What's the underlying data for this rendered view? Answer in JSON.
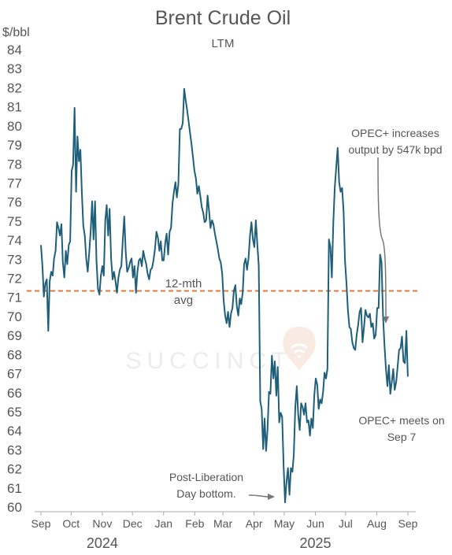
{
  "chart_data": {
    "type": "line",
    "title": "Brent Crude Oil",
    "subtitle": "LTM",
    "ylabel": "$/bbl",
    "xlabel": "",
    "ylim": [
      60,
      84
    ],
    "yticks": [
      60,
      61,
      62,
      63,
      64,
      65,
      66,
      67,
      68,
      69,
      70,
      71,
      72,
      73,
      74,
      75,
      76,
      77,
      78,
      79,
      80,
      81,
      82,
      83,
      84
    ],
    "xlim": [
      0,
      365
    ],
    "x_ticks": [
      {
        "x": 0,
        "label": "Sep"
      },
      {
        "x": 30,
        "label": "Oct"
      },
      {
        "x": 61,
        "label": "Nov"
      },
      {
        "x": 91,
        "label": "Dec"
      },
      {
        "x": 122,
        "label": "Jan"
      },
      {
        "x": 153,
        "label": "Feb"
      },
      {
        "x": 181,
        "label": "Mar"
      },
      {
        "x": 212,
        "label": "Apr"
      },
      {
        "x": 242,
        "label": "May"
      },
      {
        "x": 273,
        "label": "Jun"
      },
      {
        "x": 303,
        "label": "Jul"
      },
      {
        "x": 334,
        "label": "Aug"
      },
      {
        "x": 365,
        "label": "Sep"
      }
    ],
    "year_labels": [
      {
        "x": 61,
        "label": "2024"
      },
      {
        "x": 273,
        "label": "2025"
      }
    ],
    "grid": false,
    "colors": {
      "line": "#1f5f7a",
      "average": "#e07a3a",
      "avg_text": "#e8a33c",
      "annotation": "#777777",
      "text": "#555555",
      "watermark": "#ececec"
    },
    "average": {
      "value": 71.3,
      "label_line1": "12-mth",
      "label_line2": "avg"
    },
    "series": [
      {
        "points": [
          [
            0,
            73.7
          ],
          [
            1,
            72.6
          ],
          [
            2,
            71.0
          ],
          [
            3,
            71.7
          ],
          [
            4,
            71.9
          ],
          [
            5,
            69.2
          ],
          [
            6,
            71.8
          ],
          [
            7,
            72.3
          ],
          [
            8,
            72.1
          ],
          [
            9,
            73.0
          ],
          [
            10,
            73.4
          ],
          [
            11,
            74.9
          ],
          [
            12,
            74.6
          ],
          [
            13,
            74.2
          ],
          [
            14,
            74.8
          ],
          [
            15,
            72.8
          ],
          [
            16,
            72.0
          ],
          [
            17,
            73.4
          ],
          [
            18,
            72.7
          ],
          [
            19,
            73.7
          ],
          [
            20,
            73.9
          ],
          [
            21,
            77.6
          ],
          [
            22,
            77.9
          ],
          [
            23,
            80.9
          ],
          [
            24,
            76.5
          ],
          [
            25,
            79.4
          ],
          [
            26,
            78.1
          ],
          [
            27,
            78.7
          ],
          [
            28,
            76.4
          ],
          [
            29,
            74.7
          ],
          [
            30,
            74.2
          ],
          [
            31,
            73.0
          ],
          [
            32,
            72.3
          ],
          [
            33,
            73.3
          ],
          [
            34,
            74.4
          ],
          [
            35,
            76.0
          ],
          [
            36,
            74.0
          ],
          [
            37,
            76.0
          ],
          [
            38,
            72.9
          ],
          [
            39,
            71.4
          ],
          [
            40,
            71.1
          ],
          [
            41,
            72.1
          ],
          [
            42,
            72.6
          ],
          [
            43,
            72.1
          ],
          [
            44,
            75.0
          ],
          [
            45,
            75.8
          ],
          [
            46,
            74.2
          ],
          [
            47,
            75.6
          ],
          [
            48,
            73.0
          ],
          [
            49,
            71.9
          ],
          [
            50,
            72.3
          ],
          [
            51,
            71.8
          ],
          [
            52,
            71.2
          ],
          [
            53,
            72.0
          ],
          [
            54,
            72.4
          ],
          [
            55,
            72.6
          ],
          [
            56,
            74.0
          ],
          [
            57,
            75.2
          ],
          [
            58,
            73.3
          ],
          [
            59,
            72.3
          ],
          [
            60,
            72.5
          ],
          [
            61,
            72.8
          ],
          [
            62,
            73.0
          ],
          [
            63,
            72.0
          ],
          [
            64,
            72.6
          ],
          [
            65,
            71.2
          ],
          [
            66,
            72.3
          ],
          [
            67,
            72.9
          ],
          [
            68,
            73.0
          ],
          [
            69,
            72.6
          ],
          [
            70,
            73.4
          ],
          [
            71,
            73.0
          ],
          [
            72,
            72.7
          ],
          [
            73,
            72.2
          ],
          [
            74,
            71.9
          ],
          [
            75,
            72.4
          ],
          [
            76,
            72.5
          ],
          [
            77,
            72.9
          ],
          [
            78,
            73.5
          ],
          [
            79,
            74.4
          ],
          [
            80,
            74.1
          ],
          [
            81,
            73.4
          ],
          [
            82,
            73.9
          ],
          [
            83,
            72.9
          ],
          [
            84,
            72.9
          ],
          [
            85,
            73.8
          ],
          [
            86,
            74.3
          ],
          [
            87,
            73.2
          ],
          [
            88,
            74.4
          ],
          [
            89,
            74.6
          ],
          [
            90,
            75.9
          ],
          [
            91,
            76.5
          ],
          [
            92,
            77.0
          ],
          [
            93,
            76.2
          ],
          [
            94,
            76.9
          ],
          [
            95,
            79.8
          ],
          [
            96,
            79.8
          ],
          [
            97,
            80.1
          ],
          [
            98,
            81.9
          ],
          [
            99,
            81.3
          ],
          [
            100,
            80.8
          ],
          [
            101,
            80.2
          ],
          [
            102,
            79.6
          ],
          [
            103,
            79.0
          ],
          [
            104,
            78.3
          ],
          [
            105,
            77.6
          ],
          [
            106,
            77.2
          ],
          [
            107,
            76.4
          ],
          [
            108,
            76.8
          ],
          [
            109,
            76.3
          ],
          [
            110,
            75.7
          ],
          [
            111,
            75.4
          ],
          [
            112,
            74.9
          ],
          [
            113,
            75.0
          ],
          [
            114,
            76.3
          ],
          [
            115,
            75.5
          ],
          [
            116,
            74.6
          ],
          [
            117,
            75.0
          ],
          [
            118,
            74.8
          ],
          [
            119,
            74.3
          ],
          [
            120,
            73.9
          ],
          [
            121,
            73.5
          ],
          [
            122,
            73.0
          ],
          [
            123,
            72.8
          ],
          [
            124,
            72.2
          ],
          [
            125,
            70.8
          ],
          [
            126,
            70.0
          ],
          [
            127,
            69.6
          ],
          [
            128,
            70.2
          ],
          [
            129,
            69.4
          ],
          [
            130,
            70.1
          ],
          [
            131,
            70.4
          ],
          [
            132,
            71.3
          ],
          [
            133,
            71.6
          ],
          [
            134,
            70.5
          ],
          [
            135,
            70.0
          ],
          [
            136,
            70.9
          ],
          [
            137,
            70.6
          ],
          [
            138,
            71.2
          ],
          [
            139,
            72.7
          ],
          [
            140,
            73.0
          ],
          [
            141,
            72.4
          ],
          [
            142,
            73.0
          ],
          [
            143,
            74.2
          ],
          [
            144,
            74.9
          ],
          [
            145,
            74.0
          ],
          [
            146,
            73.6
          ],
          [
            147,
            75.0
          ],
          [
            148,
            73.8
          ],
          [
            149,
            72.6
          ],
          [
            150,
            65.5
          ],
          [
            151,
            65.1
          ],
          [
            152,
            63.0
          ],
          [
            153,
            64.6
          ],
          [
            154,
            62.9
          ],
          [
            155,
            64.0
          ],
          [
            156,
            66.0
          ],
          [
            157,
            65.9
          ],
          [
            158,
            67.9
          ],
          [
            159,
            66.7
          ],
          [
            160,
            67.6
          ],
          [
            161,
            65.8
          ],
          [
            162,
            67.3
          ],
          [
            163,
            64.4
          ],
          [
            164,
            64.9
          ],
          [
            165,
            64.7
          ],
          [
            166,
            62.1
          ],
          [
            167,
            60.2
          ],
          [
            168,
            61.3
          ],
          [
            169,
            62.0
          ],
          [
            170,
            60.6
          ],
          [
            171,
            62.0
          ],
          [
            172,
            61.8
          ],
          [
            173,
            62.7
          ],
          [
            174,
            65.2
          ],
          [
            175,
            66.3
          ],
          [
            176,
            64.8
          ],
          [
            177,
            64.0
          ],
          [
            178,
            65.4
          ],
          [
            179,
            65.2
          ],
          [
            180,
            64.8
          ],
          [
            181,
            65.4
          ],
          [
            182,
            64.4
          ],
          [
            183,
            64.5
          ],
          [
            184,
            63.7
          ],
          [
            185,
            64.6
          ],
          [
            186,
            64.1
          ],
          [
            187,
            65.8
          ],
          [
            188,
            66.7
          ],
          [
            189,
            66.4
          ],
          [
            190,
            65.1
          ],
          [
            191,
            65.6
          ],
          [
            192,
            65.4
          ],
          [
            193,
            66.0
          ],
          [
            194,
            67.0
          ],
          [
            195,
            66.7
          ],
          [
            196,
            67.2
          ],
          [
            197,
            74.0
          ],
          [
            198,
            73.6
          ],
          [
            199,
            72.0
          ],
          [
            200,
            74.9
          ],
          [
            201,
            76.7
          ],
          [
            202,
            77.8
          ],
          [
            203,
            78.8
          ],
          [
            204,
            77.0
          ],
          [
            205,
            76.5
          ],
          [
            206,
            76.7
          ],
          [
            207,
            75.5
          ],
          [
            208,
            72.9
          ],
          [
            209,
            71.7
          ],
          [
            210,
            70.3
          ],
          [
            211,
            69.4
          ],
          [
            212,
            69.3
          ],
          [
            213,
            68.6
          ],
          [
            214,
            68.3
          ],
          [
            215,
            68.2
          ],
          [
            216,
            69.0
          ],
          [
            217,
            69.5
          ],
          [
            218,
            70.2
          ],
          [
            219,
            70.4
          ],
          [
            220,
            68.6
          ],
          [
            221,
            69.4
          ],
          [
            222,
            70.3
          ],
          [
            223,
            70.0
          ],
          [
            224,
            69.9
          ],
          [
            225,
            70.1
          ],
          [
            226,
            69.4
          ],
          [
            227,
            69.6
          ],
          [
            228,
            68.8
          ],
          [
            229,
            69.0
          ],
          [
            230,
            70.4
          ],
          [
            231,
            70.4
          ],
          [
            232,
            73.2
          ],
          [
            233,
            72.8
          ],
          [
            234,
            70.0
          ],
          [
            235,
            68.5
          ],
          [
            236,
            67.2
          ],
          [
            237,
            66.3
          ],
          [
            238,
            67.4
          ],
          [
            239,
            65.9
          ],
          [
            240,
            66.5
          ],
          [
            241,
            67.2
          ],
          [
            242,
            66.1
          ],
          [
            243,
            66.5
          ],
          [
            244,
            67.3
          ],
          [
            245,
            68.2
          ],
          [
            246,
            68.3
          ],
          [
            247,
            68.9
          ],
          [
            248,
            67.6
          ],
          [
            249,
            67.5
          ],
          [
            250,
            69.2
          ],
          [
            251,
            66.8
          ]
        ],
        "x_scale": 1.454
      }
    ],
    "annotations": [
      {
        "id": "opec-increase",
        "line1": "OPEC+ increases",
        "line2": "output by 547k bpd"
      },
      {
        "id": "opec-meets",
        "line1": "OPEC+ meets on",
        "line2": "Sep 7"
      },
      {
        "id": "post-liberation",
        "line1": "Post-Liberation",
        "line2": "Day bottom."
      }
    ],
    "watermark": "SUCCINCT"
  }
}
